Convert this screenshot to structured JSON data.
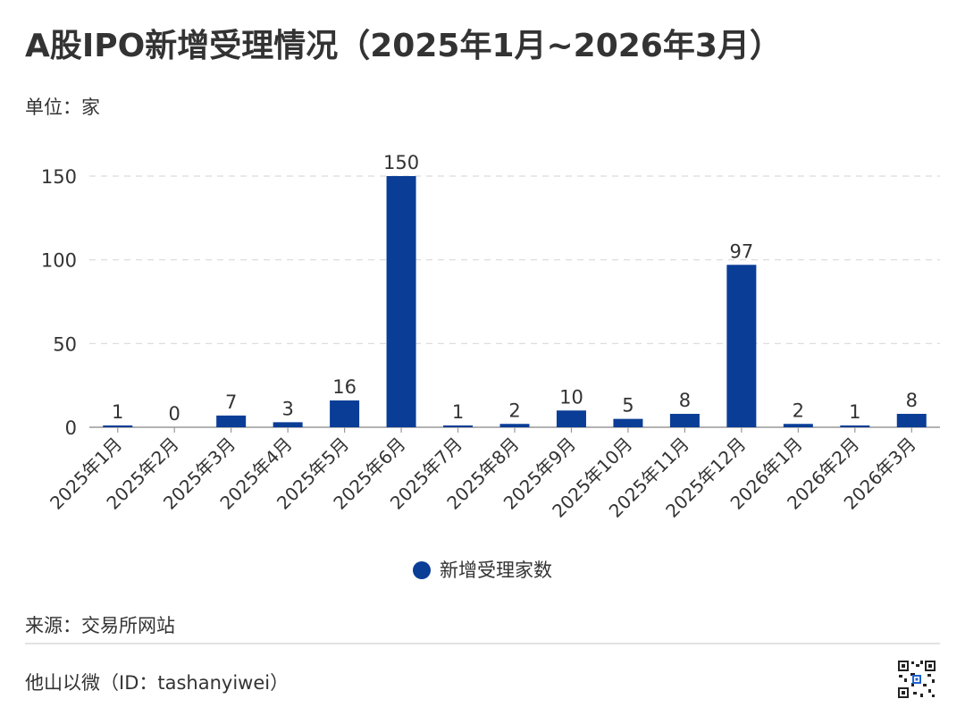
{
  "title": "A股IPO新增受理情况（2025年1月~2026年3月）",
  "unit_label": "单位：家",
  "source_label": "来源：交易所网站",
  "footer_label": "他山以微（ID：tashanyiwei）",
  "colors": {
    "bar": "#0a3d96",
    "grid": "#d9d9d9",
    "axis": "#999999",
    "text": "#333333"
  },
  "chart_data": {
    "type": "bar",
    "title": "A股IPO新增受理情况（2025年1月~2026年3月）",
    "ylabel": "单位：家",
    "ylim": [
      0,
      150
    ],
    "yticks": [
      0,
      50,
      100,
      150
    ],
    "grid": true,
    "legend_position": "bottom",
    "categories": [
      "2025年1月",
      "2025年2月",
      "2025年3月",
      "2025年4月",
      "2025年5月",
      "2025年6月",
      "2025年7月",
      "2025年8月",
      "2025年9月",
      "2025年10月",
      "2025年11月",
      "2025年12月",
      "2026年1月",
      "2026年2月",
      "2026年3月"
    ],
    "series": [
      {
        "name": "新增受理家数",
        "values": [
          1,
          0,
          7,
          3,
          16,
          150,
          1,
          2,
          10,
          5,
          8,
          97,
          2,
          1,
          8
        ]
      }
    ]
  }
}
